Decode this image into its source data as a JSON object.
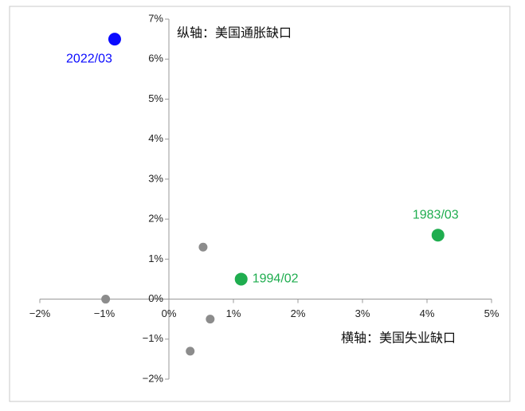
{
  "chart_data": {
    "type": "scatter",
    "x_label": "横轴：美国失业缺口",
    "y_label": "纵轴：美国通胀缺口",
    "xlim": [
      -2,
      5
    ],
    "ylim": [
      -2,
      7
    ],
    "xticks": [
      {
        "value": -2,
        "label": "−2%"
      },
      {
        "value": -1,
        "label": "−1%"
      },
      {
        "value": 0,
        "label": "0%"
      },
      {
        "value": 1,
        "label": "1%"
      },
      {
        "value": 2,
        "label": "2%"
      },
      {
        "value": 3,
        "label": "3%"
      },
      {
        "value": 4,
        "label": "4%"
      },
      {
        "value": 5,
        "label": "5%"
      }
    ],
    "yticks": [
      {
        "value": -2,
        "label": "−2%"
      },
      {
        "value": -1,
        "label": "−1%"
      },
      {
        "value": 0,
        "label": "0%"
      },
      {
        "value": 1,
        "label": "1%"
      },
      {
        "value": 2,
        "label": "2%"
      },
      {
        "value": 3,
        "label": "3%"
      },
      {
        "value": 4,
        "label": "4%"
      },
      {
        "value": 5,
        "label": "5%"
      },
      {
        "value": 6,
        "label": "6%"
      },
      {
        "value": 7,
        "label": "7%"
      }
    ],
    "series": [
      {
        "color": "#0a0aff",
        "x": [
          -0.84
        ],
        "values": [
          6.5
        ],
        "point_labels": [
          "2022/03"
        ]
      },
      {
        "color": "#1fad4f",
        "x": [
          4.17,
          1.12
        ],
        "values": [
          1.6,
          0.5
        ],
        "point_labels": [
          "1983/03",
          "1994/02"
        ]
      },
      {
        "color": "#8c8c8c",
        "x": [
          0.53,
          -0.98,
          0.64,
          0.33
        ],
        "values": [
          1.3,
          0,
          -0.5,
          -1.3
        ]
      }
    ]
  }
}
